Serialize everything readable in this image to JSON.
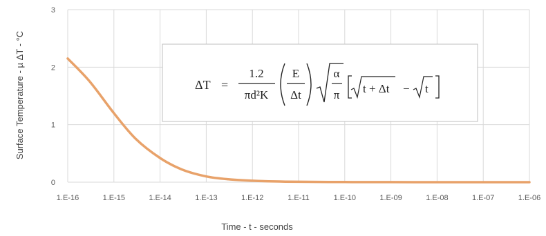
{
  "chart_data": {
    "type": "line",
    "title": "",
    "xlabel": "Time - t - seconds",
    "ylabel": "Surface Temperature - µ ΔT - °C",
    "xscale": "log",
    "xlim": [
      1e-16,
      1e-06
    ],
    "ylim": [
      0,
      3
    ],
    "x_tick_labels": [
      "1.E-16",
      "1.E-15",
      "1.E-14",
      "1.E-13",
      "1.E-12",
      "1.E-11",
      "1.E-10",
      "1.E-09",
      "1.E-08",
      "1.E-07",
      "1.E-06"
    ],
    "y_tick_labels": [
      "0",
      "1",
      "2",
      "3"
    ],
    "grid": true,
    "legend": "none",
    "series": [
      {
        "color": "#e8a26a",
        "x": [
          1e-16,
          3e-16,
          1e-15,
          3e-15,
          1e-14,
          3e-14,
          1e-13,
          3e-13,
          1e-12,
          3e-12,
          1e-11,
          1e-10,
          1e-09,
          1e-08,
          1e-07,
          1e-06
        ],
        "y": [
          2.15,
          1.75,
          1.2,
          0.75,
          0.42,
          0.22,
          0.1,
          0.05,
          0.025,
          0.013,
          0.007,
          0.003,
          0.001,
          0.0005,
          0.0002,
          0.0001
        ]
      }
    ],
    "annotation": {
      "lhs": "ΔT",
      "equals": "=",
      "coef_num": "1.2",
      "coef_den": "πd²K",
      "frac2_num": "E",
      "frac2_den": "Δt",
      "frac3_num": "α",
      "frac3_den": "π",
      "bracket_term1": "t + Δt",
      "bracket_minus": "−",
      "bracket_term2": "t"
    }
  }
}
